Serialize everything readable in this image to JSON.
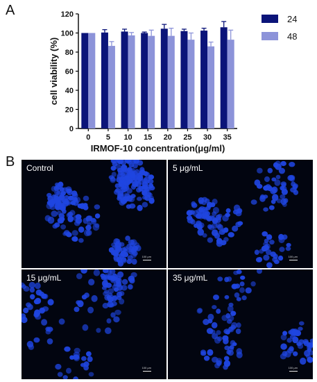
{
  "panels": {
    "a": "A",
    "b": "B"
  },
  "chart_data": {
    "type": "bar",
    "categories": [
      "0",
      "5",
      "10",
      "15",
      "20",
      "25",
      "30",
      "35"
    ],
    "series": [
      {
        "name": "24",
        "color": "#0b1479",
        "values": [
          100,
          100.5,
          101.5,
          100,
          104.5,
          102,
          102.5,
          106
        ],
        "errors": [
          0,
          3,
          2.5,
          1,
          4.5,
          2,
          2.5,
          6
        ]
      },
      {
        "name": "48",
        "color": "#8c93d9",
        "values": [
          100,
          86.5,
          97.5,
          97,
          97,
          93,
          86,
          93
        ],
        "errors": [
          0,
          4.5,
          3,
          6,
          8,
          7,
          4.5,
          10
        ]
      }
    ],
    "xlabel": "IRMOF-10 concentration(μg/ml)",
    "ylabel": "cell viability (%)",
    "ylim": [
      0,
      120
    ],
    "yticks": [
      0,
      20,
      40,
      60,
      80,
      100,
      120
    ],
    "legend_placement": "top-right"
  },
  "micrographs": [
    {
      "label": "Control",
      "scale": "100 μm",
      "density": 300,
      "seed": 11
    },
    {
      "label": "5 μg/mL",
      "scale": "100 μm",
      "density": 150,
      "seed": 23
    },
    {
      "label": "15 μg/mL",
      "scale": "100 μm",
      "density": 130,
      "seed": 37
    },
    {
      "label": "35 μg/mL",
      "scale": "100 μm",
      "density": 120,
      "seed": 51
    }
  ],
  "colors": {
    "nucleus": "#1f45e0",
    "background": "#020510"
  }
}
